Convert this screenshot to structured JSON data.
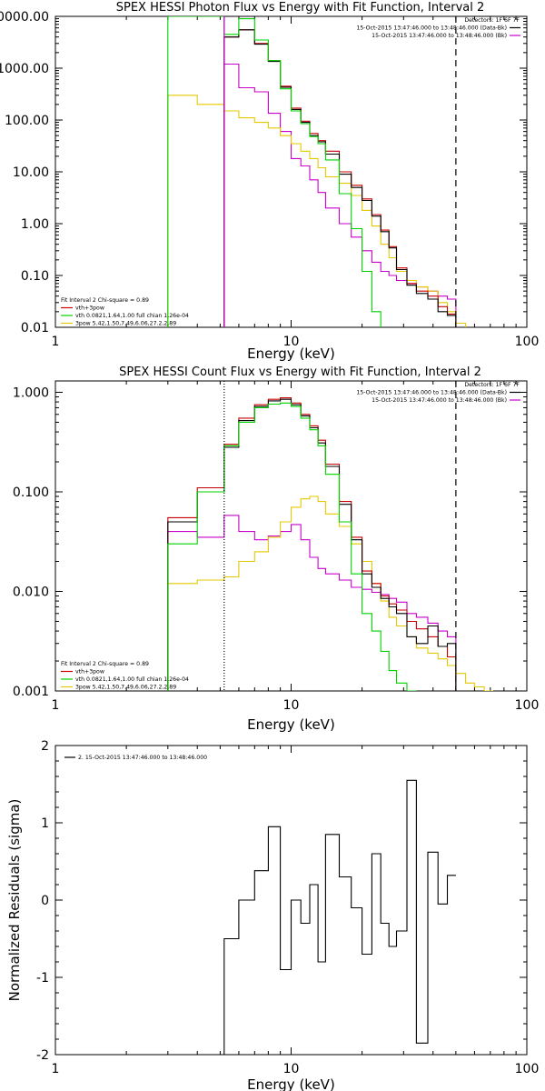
{
  "chart_data": [
    {
      "type": "line",
      "title": "SPEX HESSI Photon Flux vs Energy with Fit Function, Interval 2",
      "xlabel": "Energy (keV)",
      "ylabel": "",
      "x_scale": "log",
      "y_scale": "log",
      "xlim": [
        1,
        100
      ],
      "ylim": [
        0.01,
        10000
      ],
      "x_tick_labels": [
        {
          "value": 1,
          "label": "1"
        },
        {
          "value": 10,
          "label": "10"
        },
        {
          "value": 100,
          "label": "100"
        }
      ],
      "y_tick_labels": [
        {
          "value": 0.01,
          "label": "0.01"
        },
        {
          "value": 0.1,
          "label": "0.10"
        },
        {
          "value": 1,
          "label": "1.00"
        },
        {
          "value": 10,
          "label": "10.00"
        },
        {
          "value": 100,
          "label": "100.00"
        },
        {
          "value": 1000,
          "label": "1000.00"
        },
        {
          "value": 10000,
          "label": "10000.00"
        }
      ],
      "info_lines": [
        "Detectors: 1F 6F 7F",
        "15-Oct-2015 13:47:46.000 to 13:48:46.000 (Data-Bk)",
        "15-Oct-2015 13:47:46.000 to 13:48:46.000 (Bk)"
      ],
      "legend_lines": [
        "Fit Interval 2   Chi-square = 0.89",
        "vth+3pow",
        "vth 0.0821,1.64,1.00  full chian 1.26e-04",
        "3pow 5.42,1.50,7.49,6.06,27.2,2.89"
      ],
      "vlines": [
        {
          "x": 5.2,
          "style": "solid",
          "color": "#c800c8"
        },
        {
          "x": 50,
          "style": "dashed",
          "color": "#000000"
        }
      ],
      "series": [
        {
          "color": "#c800c8",
          "edges": [
            5.2,
            6,
            7,
            8,
            9,
            10,
            11,
            12,
            13,
            14,
            16,
            18,
            20,
            22,
            24,
            26,
            28,
            31,
            34,
            38,
            42,
            46,
            50
          ],
          "values": [
            1200,
            420,
            350,
            135,
            60,
            18,
            13,
            7,
            4,
            2,
            1,
            0.55,
            0.3,
            0.18,
            0.12,
            0.1,
            0.08,
            0.07,
            0.06,
            0.05,
            0.04,
            0.035
          ]
        },
        {
          "color": "#e6c800",
          "edges": [
            3,
            4,
            5.2,
            6,
            7,
            8,
            9,
            10,
            11,
            12,
            13,
            14,
            16,
            18,
            20,
            22,
            24,
            26,
            28,
            31,
            34,
            38,
            42,
            46,
            50,
            55
          ],
          "values": [
            300,
            200,
            150,
            110,
            90,
            70,
            50,
            35,
            25,
            18,
            12,
            8,
            6,
            3.5,
            1.8,
            0.9,
            0.4,
            0.22,
            0.12,
            0.08,
            0.06,
            0.05,
            0.03,
            0.02,
            0.012
          ]
        },
        {
          "color": "#c80000",
          "edges": [
            5.2,
            6,
            7,
            8,
            9,
            10,
            11,
            12,
            13,
            14,
            16,
            18,
            20,
            22,
            24,
            26,
            28,
            31,
            34,
            38,
            42,
            46,
            50
          ],
          "values": [
            4000,
            5500,
            3000,
            1400,
            450,
            170,
            95,
            55,
            40,
            25,
            10,
            5.5,
            3,
            1.5,
            0.75,
            0.36,
            0.14,
            0.07,
            0.05,
            0.04,
            0.025,
            0.018
          ]
        },
        {
          "color": "#000000",
          "edges": [
            5.2,
            6,
            7,
            8,
            9,
            10,
            11,
            12,
            13,
            14,
            16,
            18,
            20,
            22,
            24,
            26,
            28,
            31,
            34,
            38,
            42,
            46,
            50
          ],
          "values": [
            4000,
            5500,
            2900,
            1350,
            430,
            160,
            90,
            50,
            38,
            22,
            9,
            5,
            2.8,
            1.4,
            0.7,
            0.34,
            0.13,
            0.065,
            0.045,
            0.035,
            0.02,
            0.017
          ]
        },
        {
          "color": "#00d200",
          "edges": [
            3,
            4,
            5.2,
            6,
            7,
            8,
            9,
            10,
            11,
            12,
            13,
            14,
            16,
            18,
            20,
            22,
            24
          ],
          "values": [
            10000,
            10000,
            4500,
            9000,
            3500,
            1400,
            400,
            150,
            85,
            48,
            35,
            17,
            3.8,
            0.8,
            0.12,
            0.02
          ]
        }
      ]
    },
    {
      "type": "line",
      "title": "SPEX HESSI Count Flux vs Energy with Fit Function, Interval 2",
      "xlabel": "Energy (keV)",
      "ylabel": "",
      "x_scale": "log",
      "y_scale": "log",
      "xlim": [
        1,
        100
      ],
      "ylim": [
        0.001,
        1.3
      ],
      "x_tick_labels": [
        {
          "value": 1,
          "label": "1"
        },
        {
          "value": 10,
          "label": "10"
        },
        {
          "value": 100,
          "label": "100"
        }
      ],
      "y_tick_labels": [
        {
          "value": 0.001,
          "label": "0.001"
        },
        {
          "value": 0.01,
          "label": "0.010"
        },
        {
          "value": 0.1,
          "label": "0.100"
        },
        {
          "value": 1,
          "label": "1.000"
        }
      ],
      "info_lines": [
        "Detectors: 1F 6F 7F",
        "15-Oct-2015 13:47:46.000 to 13:48:46.000 (Data-Bk)",
        "15-Oct-2015 13:47:46.000 to 13:48:46.000 (Bk)"
      ],
      "legend_lines": [
        "Fit Interval 2   Chi-square = 0.89",
        "vth+3pow",
        "vth 0.0821,1.64,1.00  full chian 1.26e-04",
        "3pow 5.42,1.50,7.49,6.06,27.2,2.89"
      ],
      "vlines": [
        {
          "x": 5.2,
          "style": "dotted",
          "color": "#000000"
        },
        {
          "x": 50,
          "style": "dashed",
          "color": "#000000"
        }
      ],
      "series": [
        {
          "color": "#c800c8",
          "edges": [
            3,
            4,
            5.2,
            6,
            7,
            8,
            9,
            10,
            11,
            12,
            13,
            14,
            16,
            18,
            20,
            22,
            24,
            26,
            28,
            31,
            34,
            38,
            42,
            46,
            50
          ],
          "values": [
            0.04,
            0.035,
            0.058,
            0.04,
            0.033,
            0.036,
            0.04,
            0.047,
            0.033,
            0.022,
            0.017,
            0.015,
            0.013,
            0.011,
            0.0105,
            0.0098,
            0.0093,
            0.0085,
            0.0078,
            0.006,
            0.0055,
            0.0048,
            0.004,
            0.0035
          ]
        },
        {
          "color": "#e6c800",
          "edges": [
            3,
            4,
            5.2,
            6,
            7,
            8,
            9,
            10,
            11,
            12,
            13,
            14,
            16,
            18,
            20,
            22,
            24,
            26,
            28,
            31,
            34,
            38,
            42,
            46,
            50,
            55,
            60,
            66,
            72
          ],
          "values": [
            0.012,
            0.013,
            0.014,
            0.02,
            0.025,
            0.035,
            0.05,
            0.07,
            0.085,
            0.09,
            0.08,
            0.06,
            0.045,
            0.03,
            0.02,
            0.012,
            0.008,
            0.0055,
            0.0045,
            0.0035,
            0.0027,
            0.0024,
            0.0021,
            0.0018,
            0.0015,
            0.0012,
            0.0011,
            0.001
          ]
        },
        {
          "color": "#c80000",
          "edges": [
            3,
            4,
            5.2,
            6,
            7,
            8,
            9,
            10,
            11,
            12,
            13,
            14,
            16,
            18,
            20,
            22,
            24,
            26,
            28,
            31,
            34,
            38,
            42,
            46,
            50
          ],
          "values": [
            0.055,
            0.11,
            0.3,
            0.55,
            0.75,
            0.85,
            0.88,
            0.78,
            0.6,
            0.46,
            0.33,
            0.19,
            0.08,
            0.035,
            0.016,
            0.012,
            0.009,
            0.0075,
            0.0065,
            0.005,
            0.0042,
            0.0035,
            0.0028,
            0.0022
          ]
        },
        {
          "color": "#000000",
          "edges": [
            3,
            4,
            5.2,
            6,
            7,
            8,
            9,
            10,
            11,
            12,
            13,
            14,
            16,
            18,
            20,
            22,
            24,
            26,
            28,
            31,
            34,
            38,
            42,
            46,
            50
          ],
          "values": [
            0.05,
            0.1,
            0.28,
            0.52,
            0.72,
            0.82,
            0.85,
            0.75,
            0.58,
            0.44,
            0.31,
            0.18,
            0.075,
            0.033,
            0.015,
            0.011,
            0.0085,
            0.007,
            0.006,
            0.0035,
            0.003,
            0.0045,
            0.0028,
            0.003
          ]
        },
        {
          "color": "#00d200",
          "edges": [
            3,
            4,
            5.2,
            6,
            7,
            8,
            9,
            10,
            11,
            12,
            13,
            14,
            16,
            18,
            20,
            22,
            24,
            26,
            28,
            31,
            34
          ],
          "values": [
            0.03,
            0.1,
            0.29,
            0.5,
            0.7,
            0.76,
            0.78,
            0.72,
            0.55,
            0.42,
            0.29,
            0.15,
            0.05,
            0.015,
            0.006,
            0.004,
            0.0025,
            0.0016,
            0.0012,
            0.001
          ]
        }
      ]
    },
    {
      "type": "line",
      "title": "",
      "xlabel": "Energy (keV)",
      "ylabel": "Normalized Residuals (sigma)",
      "x_scale": "log",
      "y_scale": "linear",
      "xlim": [
        1,
        100
      ],
      "ylim": [
        -2,
        2
      ],
      "x_tick_labels": [
        {
          "value": 1,
          "label": "1"
        },
        {
          "value": 10,
          "label": "10"
        },
        {
          "value": 100,
          "label": "100"
        }
      ],
      "y_tick_labels": [
        {
          "value": -2,
          "label": "-2"
        },
        {
          "value": -1,
          "label": "-1"
        },
        {
          "value": 0,
          "label": "0"
        },
        {
          "value": 1,
          "label": "1"
        },
        {
          "value": 2,
          "label": "2"
        }
      ],
      "legend_lines": [
        "2. 15-Oct-2015 13:47:46.000 to 13:48:46.000"
      ],
      "series": [
        {
          "color": "#000000",
          "edges": [
            5.2,
            6,
            7,
            8,
            9,
            10,
            11,
            12,
            13,
            14,
            16,
            18,
            20,
            22,
            24,
            26,
            28,
            31,
            34,
            38,
            42,
            46,
            50
          ],
          "values": [
            -0.5,
            0.0,
            0.38,
            0.95,
            -0.9,
            0.0,
            -0.3,
            0.2,
            -0.8,
            0.85,
            0.3,
            -0.1,
            -0.7,
            0.6,
            -0.3,
            -0.6,
            -0.4,
            1.55,
            -1.85,
            0.62,
            -0.05,
            0.32
          ]
        }
      ]
    }
  ]
}
